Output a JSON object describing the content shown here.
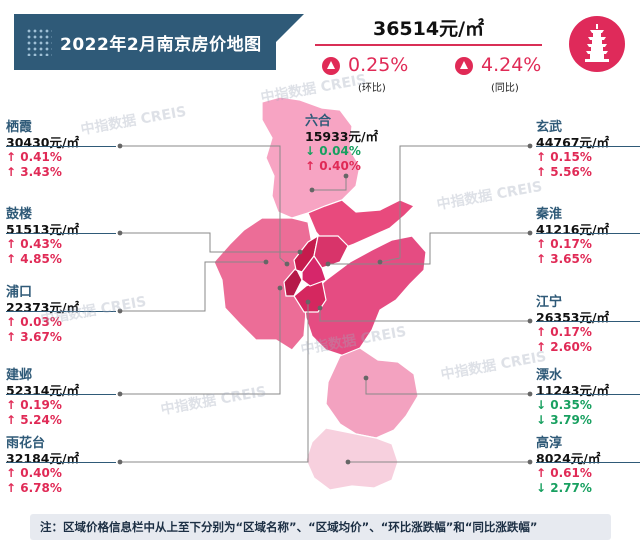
{
  "title": "2022年2月南京房价地图",
  "city_average": {
    "price": "36514元/㎡",
    "mom": {
      "value": "0.25%",
      "label": "(环比)",
      "direction": "up"
    },
    "yoy": {
      "value": "4.24%",
      "label": "(同比)",
      "direction": "up"
    }
  },
  "colors": {
    "title_bg": "#2f5a78",
    "accent": "#e02a56",
    "up": "#e02a56",
    "down": "#18a060"
  },
  "districts": {
    "qixia": {
      "name": "栖霞",
      "price": "30430元/㎡",
      "mom": "↑ 0.41%",
      "yoy": "↑ 3.43%",
      "mom_dir": "up",
      "yoy_dir": "up"
    },
    "gulou": {
      "name": "鼓楼",
      "price": "51513元/㎡",
      "mom": "↑ 0.43%",
      "yoy": "↑ 4.85%",
      "mom_dir": "up",
      "yoy_dir": "up"
    },
    "pukou": {
      "name": "浦口",
      "price": "22373元/㎡",
      "mom": "↑ 0.03%",
      "yoy": "↑ 3.67%",
      "mom_dir": "up",
      "yoy_dir": "up"
    },
    "jianye": {
      "name": "建邺",
      "price": "52314元/㎡",
      "mom": "↑ 0.19%",
      "yoy": "↑ 5.24%",
      "mom_dir": "up",
      "yoy_dir": "up"
    },
    "yuhuatai": {
      "name": "雨花台",
      "price": "32184元/㎡",
      "mom": "↑ 0.40%",
      "yoy": "↑ 6.78%",
      "mom_dir": "up",
      "yoy_dir": "up"
    },
    "liuhe": {
      "name": "六合",
      "price": "15933元/㎡",
      "mom": "↓ 0.04%",
      "yoy": "↑ 0.40%",
      "mom_dir": "down",
      "yoy_dir": "up"
    },
    "xuanwu": {
      "name": "玄武",
      "price": "44767元/㎡",
      "mom": "↑ 0.15%",
      "yoy": "↑ 5.56%",
      "mom_dir": "up",
      "yoy_dir": "up"
    },
    "qinhuai": {
      "name": "秦淮",
      "price": "41216元/㎡",
      "mom": "↑ 0.17%",
      "yoy": "↑ 3.65%",
      "mom_dir": "up",
      "yoy_dir": "up"
    },
    "jiangning": {
      "name": "江宁",
      "price": "26353元/㎡",
      "mom": "↑ 0.17%",
      "yoy": "↑ 2.60%",
      "mom_dir": "up",
      "yoy_dir": "up"
    },
    "lishui": {
      "name": "溧水",
      "price": "11243元/㎡",
      "mom": "↓ 0.35%",
      "yoy": "↓ 3.79%",
      "mom_dir": "down",
      "yoy_dir": "down"
    },
    "gaochun": {
      "name": "高淳",
      "price": "8024元/㎡",
      "mom": "↑ 0.61%",
      "yoy": "↓ 2.77%",
      "mom_dir": "up",
      "yoy_dir": "down"
    }
  },
  "note": "注：区域价格信息栏中从上至下分别为“区域名称”、“区域均价”、“环比涨跌幅”和“同比涨跌幅”",
  "watermark": {
    "cn": "中指数据",
    "en": "CREIS"
  },
  "emblem_icon": "pagoda-icon"
}
